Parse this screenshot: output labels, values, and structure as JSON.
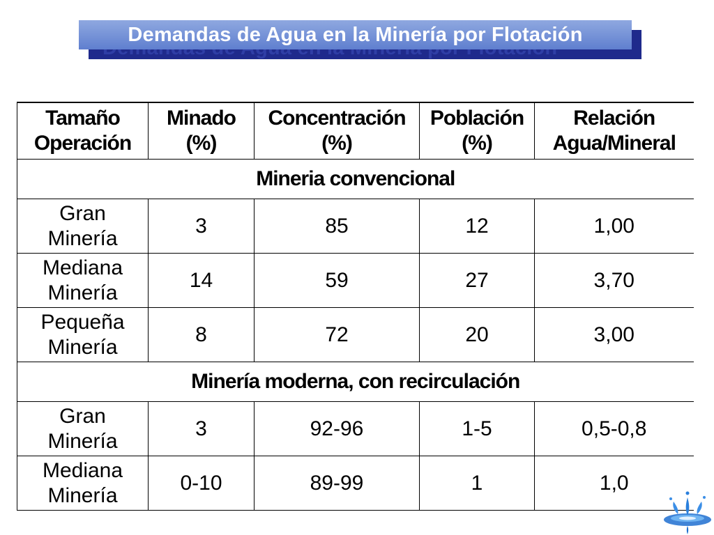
{
  "title": "Demandas de Agua en la Minería por Flotación",
  "table": {
    "headers": [
      [
        "Tamaño",
        "Operación"
      ],
      [
        "Minado",
        "(%)"
      ],
      [
        "Concentración",
        "(%)"
      ],
      [
        "Población",
        "(%)"
      ],
      [
        "Relación",
        "Agua/Mineral"
      ]
    ],
    "sections": [
      {
        "label": "Mineria convencional",
        "rows": [
          {
            "name": [
              "Gran",
              "Minería"
            ],
            "minado": "3",
            "concentracion": "85",
            "poblacion": "12",
            "relacion": "1,00"
          },
          {
            "name": [
              "Mediana",
              "Minería"
            ],
            "minado": "14",
            "concentracion": "59",
            "poblacion": "27",
            "relacion": "3,70"
          },
          {
            "name": [
              "Pequeña",
              "Minería"
            ],
            "minado": "8",
            "concentracion": "72",
            "poblacion": "20",
            "relacion": "3,00"
          }
        ]
      },
      {
        "label": "Minería moderna, con recirculación",
        "rows": [
          {
            "name": [
              "Gran",
              "Minería"
            ],
            "minado": "3",
            "concentracion": "92-96",
            "poblacion": "1-5",
            "relacion": "0,5-0,8"
          },
          {
            "name": [
              "Mediana",
              "Minería"
            ],
            "minado": "0-10",
            "concentracion": "89-99",
            "poblacion": "1",
            "relacion": "1,0"
          }
        ]
      }
    ]
  },
  "colors": {
    "banner_top": "#8fa8e0",
    "banner_bottom": "#5f7fcf",
    "banner_shadow": "#1f2a8c",
    "logo_blue": "#1e6fd0"
  },
  "logo_icon": "water-splash-icon"
}
